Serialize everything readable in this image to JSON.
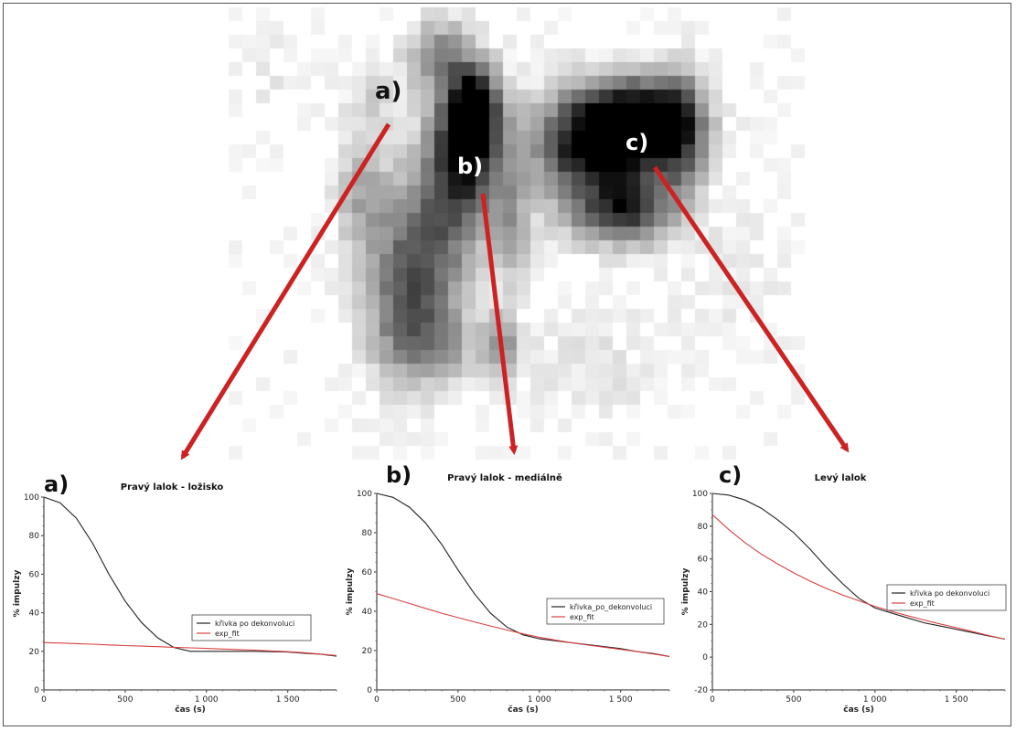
{
  "scan": {
    "region_labels": [
      "a)",
      "b)",
      "c)"
    ],
    "arrow_color": "#cc2222"
  },
  "chart_data": [
    {
      "type": "line",
      "panel_label": "a)",
      "title": "Pravý lalok - ložisko",
      "xlabel": "čas (s)",
      "ylabel": "% impulzy",
      "xlim": [
        0,
        1800
      ],
      "ylim": [
        0,
        100
      ],
      "xticks": [
        0,
        500,
        1000,
        1500
      ],
      "xtick_labels": [
        "0",
        "500",
        "1 000",
        "1 500"
      ],
      "yticks": [
        0,
        20,
        40,
        60,
        80,
        100
      ],
      "ytick_labels": [
        "0",
        "20",
        "40",
        "60",
        "80",
        "100"
      ],
      "legend": [
        "křivka po dekonvoluci",
        "exp_fit"
      ],
      "series": [
        {
          "name": "křivka po dekonvoluci",
          "color": "#222222",
          "x": [
            0,
            100,
            200,
            300,
            400,
            500,
            600,
            700,
            800,
            900,
            1000,
            1100,
            1200,
            1300,
            1400,
            1500,
            1600,
            1700,
            1800
          ],
          "y": [
            100,
            97,
            89,
            76,
            60,
            46,
            35,
            27,
            22,
            20,
            20,
            20,
            20,
            20,
            19.8,
            19.6,
            19,
            18.5,
            17.5
          ]
        },
        {
          "name": "exp_fit",
          "color": "#d94040",
          "x": [
            0,
            100,
            200,
            300,
            400,
            500,
            600,
            700,
            800,
            900,
            1000,
            1100,
            1200,
            1300,
            1400,
            1500,
            1600,
            1700,
            1800
          ],
          "y": [
            24.5,
            24.3,
            24,
            23.7,
            23.3,
            23,
            22.7,
            22.4,
            22.1,
            21.8,
            21.5,
            21.2,
            20.9,
            20.6,
            20.2,
            19.8,
            19.3,
            18.6,
            17.8
          ]
        }
      ]
    },
    {
      "type": "line",
      "panel_label": "b)",
      "title": "Pravý lalok - mediálně",
      "xlabel": "čas (s)",
      "ylabel": "% impulzy",
      "xlim": [
        0,
        1800
      ],
      "ylim": [
        0,
        100
      ],
      "xticks": [
        0,
        500,
        1000,
        1500
      ],
      "xtick_labels": [
        "0",
        "500",
        "1 000",
        "1 500"
      ],
      "yticks": [
        0,
        20,
        40,
        60,
        80,
        100
      ],
      "ytick_labels": [
        "0",
        "20",
        "40",
        "60",
        "80",
        "100"
      ],
      "legend": [
        "křivka_po_dekonvoluci",
        "exp_fit"
      ],
      "series": [
        {
          "name": "křivka_po_dekonvoluci",
          "color": "#222222",
          "x": [
            0,
            100,
            200,
            300,
            400,
            500,
            600,
            700,
            800,
            900,
            1000,
            1100,
            1200,
            1300,
            1400,
            1500,
            1600,
            1700,
            1800
          ],
          "y": [
            100,
            98,
            93,
            85,
            74,
            61,
            49,
            39,
            32,
            28,
            26,
            25,
            24,
            23,
            22,
            21,
            19.5,
            18.5,
            17
          ]
        },
        {
          "name": "exp_fit",
          "color": "#d94040",
          "x": [
            0,
            100,
            200,
            300,
            400,
            500,
            600,
            700,
            800,
            900,
            1000,
            1100,
            1200,
            1300,
            1400,
            1500,
            1600,
            1700,
            1800
          ],
          "y": [
            49,
            46.5,
            44,
            41.5,
            39,
            36.8,
            34.6,
            32.5,
            30.5,
            28.5,
            26.8,
            25.3,
            24,
            22.8,
            21.7,
            20.6,
            19.5,
            18.3,
            17
          ]
        }
      ]
    },
    {
      "type": "line",
      "panel_label": "c)",
      "title": "Levý lalok",
      "xlabel": "čas (s)",
      "ylabel": "% impulzy",
      "xlim": [
        0,
        1800
      ],
      "ylim": [
        -20,
        100
      ],
      "xticks": [
        0,
        500,
        1000,
        1500
      ],
      "xtick_labels": [
        "0",
        "500",
        "1 000",
        "1 500"
      ],
      "yticks": [
        -20,
        0,
        20,
        40,
        60,
        80,
        100
      ],
      "ytick_labels": [
        "-20",
        "0",
        "20",
        "40",
        "60",
        "80",
        "100"
      ],
      "legend": [
        "křivka po dekonvoluci",
        "exp_fit"
      ],
      "series": [
        {
          "name": "křivka po dekonvoluci",
          "color": "#222222",
          "x": [
            0,
            100,
            200,
            300,
            400,
            500,
            600,
            700,
            800,
            900,
            1000,
            1100,
            1200,
            1300,
            1400,
            1500,
            1600,
            1700,
            1800
          ],
          "y": [
            100,
            99,
            96,
            91,
            84,
            76,
            66,
            55,
            45,
            36,
            30,
            27,
            24,
            21,
            19,
            17,
            15,
            13,
            11
          ]
        },
        {
          "name": "exp_fit",
          "color": "#d94040",
          "x": [
            0,
            100,
            200,
            300,
            400,
            500,
            600,
            700,
            800,
            900,
            1000,
            1100,
            1200,
            1300,
            1400,
            1500,
            1600,
            1700,
            1800
          ],
          "y": [
            87,
            78,
            70,
            63,
            57,
            51.5,
            46.5,
            42,
            38,
            34.5,
            31,
            28,
            25.3,
            22.7,
            20.3,
            18,
            15.6,
            13.2,
            11
          ]
        }
      ]
    }
  ]
}
